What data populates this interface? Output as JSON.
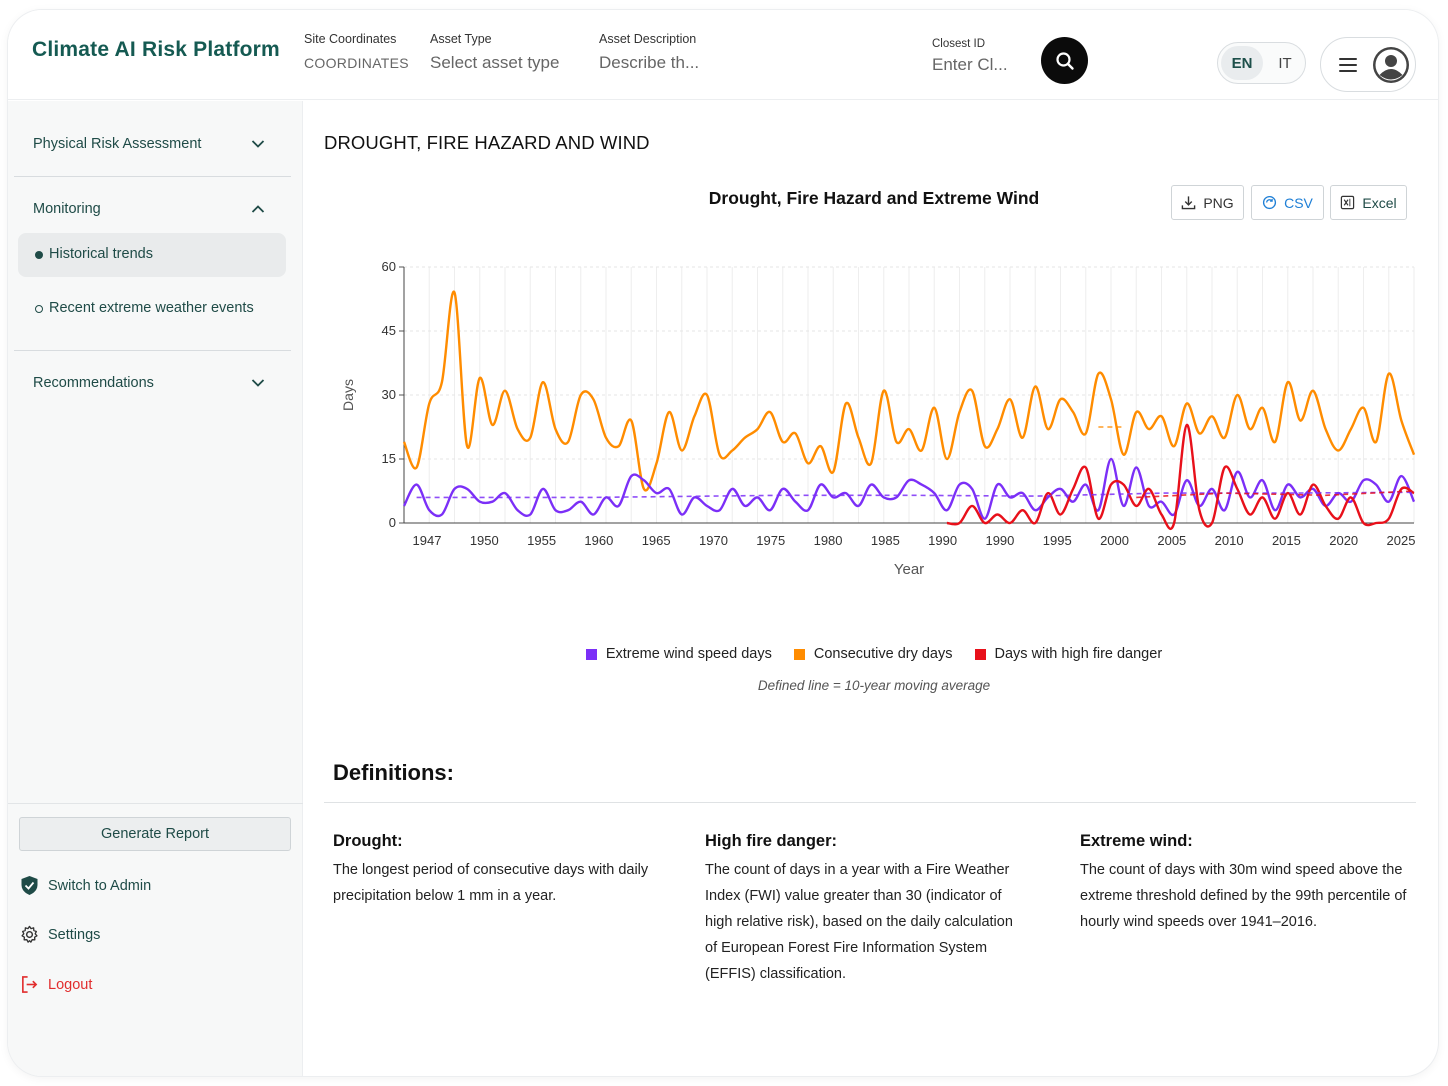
{
  "header": {
    "brand": "Climate AI Risk Platform",
    "site_coordinates": {
      "label": "Site Coordinates",
      "value": "COORDINATES"
    },
    "asset_type": {
      "label": "Asset Type",
      "value": "Select asset type"
    },
    "asset_description": {
      "label": "Asset Description",
      "value": "Describe th..."
    },
    "closest_id": {
      "label": "Closest ID",
      "value": "Enter Cl..."
    },
    "lang_en": "EN",
    "lang_it": "IT"
  },
  "sidebar": {
    "physical_risk": "Physical Risk Assessment",
    "monitoring": "Monitoring",
    "historical_trends": "Historical trends",
    "recent_events": "Recent extreme weather events",
    "recommendations": "Recommendations",
    "generate_report": "Generate Report",
    "switch_admin": "Switch to Admin",
    "settings": "Settings",
    "logout": "Logout"
  },
  "main": {
    "page_title": "DROUGHT, FIRE HAZARD AND WIND",
    "export": {
      "png": "PNG",
      "csv": "CSV",
      "excel": "Excel"
    },
    "note": "Defined line = 10-year moving average",
    "definitions_title": "Definitions:",
    "definitions": [
      {
        "title": "Drought:",
        "text": "The longest period of consecutive days with daily precipitation below 1 mm in a year."
      },
      {
        "title": "High fire danger:",
        "text": "The count of days in a year with a Fire Weather Index (FWI) value greater than 30 (indicator of high relative risk), based on the daily calculation of European Forest Fire Information System (EFFIS) classification."
      },
      {
        "title": "Extreme wind:",
        "text": "The count of days with 30m wind speed above the extreme threshold defined by the 99th percentile of hourly wind speeds over 1941–2016."
      }
    ]
  },
  "colors": {
    "brand": "#155a52",
    "wind": "#7b2ff7",
    "dry": "#ff8c00",
    "fire": "#e8101a"
  },
  "chart_data": {
    "type": "line",
    "title": "Drought, Fire Hazard and Extreme Wind",
    "xlabel": "Year",
    "ylabel": "Days",
    "ylim": [
      0,
      60
    ],
    "yticks": [
      0,
      15,
      30,
      45,
      60
    ],
    "x_tick_labels": [
      "1947",
      "1950",
      "1955",
      "1960",
      "1965",
      "1970",
      "1975",
      "1980",
      "1985",
      "1990",
      "1990",
      "1995",
      "2000",
      "2005",
      "2010",
      "2015",
      "2020",
      "2025"
    ],
    "grid": true,
    "legend_position": "bottom",
    "x": [
      1945,
      1946,
      1947,
      1948,
      1949,
      1950,
      1951,
      1952,
      1953,
      1954,
      1955,
      1956,
      1957,
      1958,
      1959,
      1960,
      1961,
      1962,
      1963,
      1964,
      1965,
      1966,
      1967,
      1968,
      1969,
      1970,
      1971,
      1972,
      1973,
      1974,
      1975,
      1976,
      1977,
      1978,
      1979,
      1980,
      1981,
      1982,
      1983,
      1984,
      1985,
      1986,
      1987,
      1988,
      1989,
      1990,
      1991,
      1992,
      1993,
      1994,
      1995,
      1996,
      1997,
      1998,
      1999,
      2000,
      2001,
      2002,
      2003,
      2004,
      2005,
      2006,
      2007,
      2008,
      2009,
      2010,
      2011,
      2012,
      2013,
      2014,
      2015,
      2016,
      2017,
      2018,
      2019,
      2020,
      2021,
      2022,
      2023,
      2024,
      2025
    ],
    "series": [
      {
        "name": "Consecutive dry days",
        "color": "#ff8c00",
        "values": [
          19,
          13,
          28,
          33,
          54,
          18,
          34,
          23,
          31,
          22,
          20,
          33,
          22,
          19,
          30,
          29,
          20,
          18,
          24,
          8,
          14,
          26,
          17,
          25,
          30,
          16,
          17,
          20,
          22,
          26,
          19,
          21,
          14,
          18,
          12,
          28,
          20,
          14,
          31,
          19,
          22,
          17,
          27,
          15,
          26,
          31,
          18,
          22,
          29,
          20,
          32,
          22,
          29,
          26,
          21,
          35,
          29,
          16,
          26,
          22,
          25,
          18,
          28,
          21,
          25,
          20,
          30,
          22,
          27,
          19,
          33,
          24,
          31,
          22,
          17,
          22,
          27,
          19,
          35,
          24,
          16
        ]
      },
      {
        "name": "Extreme wind speed days",
        "color": "#7b2ff7",
        "values": [
          4,
          9,
          3,
          2,
          8,
          8,
          5,
          5,
          7,
          3,
          2,
          8,
          3,
          3,
          5,
          2,
          6,
          4,
          11,
          10,
          7,
          8,
          2,
          6,
          4,
          3,
          8,
          4,
          6,
          3,
          8,
          5,
          3,
          9,
          6,
          7,
          4,
          9,
          6,
          6,
          10,
          9,
          7,
          3,
          9,
          8,
          1,
          9,
          6,
          7,
          3,
          6,
          8,
          5,
          9,
          3,
          15,
          4,
          13,
          4,
          5,
          2,
          10,
          4,
          8,
          3,
          12,
          6,
          10,
          3,
          9,
          6,
          8,
          4,
          7,
          5,
          10,
          9,
          5,
          11,
          5
        ]
      },
      {
        "name": "Days with high fire danger",
        "color": "#e8101a",
        "values": [
          null,
          null,
          null,
          null,
          null,
          null,
          null,
          null,
          null,
          null,
          null,
          null,
          null,
          null,
          null,
          null,
          null,
          null,
          null,
          null,
          null,
          null,
          null,
          null,
          null,
          null,
          null,
          null,
          null,
          null,
          null,
          null,
          null,
          null,
          null,
          null,
          null,
          null,
          null,
          null,
          null,
          null,
          null,
          0,
          0,
          4,
          0,
          2,
          0,
          3,
          0,
          7,
          2,
          8,
          13,
          1,
          9,
          9,
          4,
          8,
          2,
          0,
          23,
          3,
          0,
          13,
          8,
          2,
          6,
          1,
          7,
          2,
          9,
          4,
          1,
          6,
          0,
          0,
          1,
          8,
          7
        ]
      }
    ],
    "moving_average_note": "Defined line = 10-year moving average",
    "moving_average": [
      {
        "series": "Extreme wind speed days",
        "values": [
          [
            1946,
            6
          ],
          [
            1960,
            6
          ],
          [
            1975,
            6.5
          ],
          [
            1985,
            6.5
          ],
          [
            1995,
            6.3
          ],
          [
            2005,
            7
          ],
          [
            2015,
            7
          ],
          [
            2025,
            7.2
          ]
        ]
      },
      {
        "series": "Consecutive dry days",
        "values": [
          [
            2000,
            22.5
          ],
          [
            2002,
            22.5
          ]
        ]
      },
      {
        "series": "Days with high fire danger",
        "values": [
          [
            2003,
            6
          ],
          [
            2010,
            7
          ],
          [
            2018,
            6.5
          ],
          [
            2025,
            7.5
          ]
        ]
      }
    ]
  }
}
